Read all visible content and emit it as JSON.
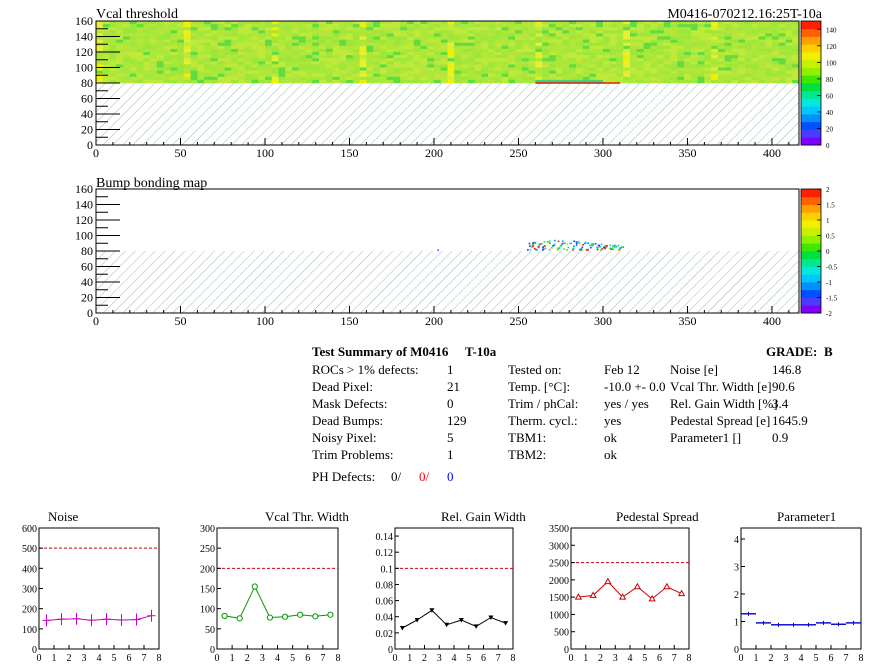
{
  "header": {
    "module_id": "M0416-070212.16:25T-10a"
  },
  "maps": [
    {
      "title": "Vcal threshold",
      "xlim": [
        0,
        416
      ],
      "ylim": [
        0,
        160
      ],
      "xticks": [
        0,
        50,
        100,
        150,
        200,
        250,
        300,
        350,
        400
      ],
      "yticks": [
        0,
        20,
        40,
        60,
        80,
        100,
        120,
        140,
        160
      ],
      "filled_rows": [
        80,
        160
      ],
      "hatched_rows": [
        0,
        80
      ],
      "dip_region": {
        "x": [
          260,
          300
        ],
        "y": [
          80,
          84
        ]
      },
      "palette": {
        "zlim": [
          0,
          150
        ],
        "ticks": [
          0,
          20,
          40,
          60,
          80,
          100,
          120,
          140
        ]
      }
    },
    {
      "title": "Bump bonding map",
      "xlim": [
        0,
        416
      ],
      "ylim": [
        0,
        160
      ],
      "xticks": [
        0,
        50,
        100,
        150,
        200,
        250,
        300,
        350,
        400
      ],
      "yticks": [
        0,
        20,
        40,
        60,
        80,
        100,
        120,
        140,
        160
      ],
      "hatched_rows": [
        0,
        80
      ],
      "hit_region": {
        "x": [
          255,
          312
        ],
        "y": [
          82,
          96
        ]
      },
      "palette": {
        "zlim": [
          -2,
          2
        ],
        "ticks": [
          -2,
          -1.5,
          -1,
          -0.5,
          0,
          0.5,
          1,
          1.5,
          2
        ]
      }
    }
  ],
  "summary": {
    "title": "Test Summary of M0416",
    "temp_tag": "T-10a",
    "grade_label": "GRADE:",
    "grade": "B",
    "col1": [
      {
        "label": "ROCs > 1% defects:",
        "value": "1"
      },
      {
        "label": "Dead Pixel:",
        "value": "21"
      },
      {
        "label": "Mask Defects:",
        "value": "0"
      },
      {
        "label": "Dead Bumps:",
        "value": "129"
      },
      {
        "label": "Noisy Pixel:",
        "value": "5"
      },
      {
        "label": "Trim Problems:",
        "value": "1"
      }
    ],
    "ph_defects": {
      "label": "PH Defects:",
      "v1": "0/",
      "v2": "0/",
      "v3": "0",
      "c1": "#000000",
      "c2": "#ff0000",
      "c3": "#0000ff"
    },
    "col2": [
      {
        "label": "Tested on:",
        "value": "Feb 12"
      },
      {
        "label": "Temp. [°C]:",
        "value": "-10.0 +- 0.0"
      },
      {
        "label": "Trim / phCal:",
        "value": "yes / yes"
      },
      {
        "label": "Therm. cycl.:",
        "value": "yes"
      },
      {
        "label": "TBM1:",
        "value": "ok"
      },
      {
        "label": "TBM2:",
        "value": "ok"
      }
    ],
    "col3": [
      {
        "label": "Noise [e]",
        "value": "146.8"
      },
      {
        "label": "Vcal Thr. Width [e]",
        "value": "90.6"
      },
      {
        "label": "Rel. Gain Width [%]",
        "value": "3.4"
      },
      {
        "label": "Pedestal Spread [e]",
        "value": "1645.9"
      },
      {
        "label": "Parameter1 []",
        "value": "0.9"
      }
    ]
  },
  "chart_data": [
    {
      "type": "line",
      "title": "Noise",
      "color": "#cc00cc",
      "marker": "plus",
      "x": [
        0.5,
        1.5,
        2.5,
        3.5,
        4.5,
        5.5,
        6.5,
        7.5
      ],
      "values": [
        142,
        148,
        150,
        143,
        148,
        144,
        146,
        165
      ],
      "xlim": [
        0,
        8
      ],
      "ylim": [
        0,
        600
      ],
      "yticks": [
        0,
        100,
        200,
        300,
        400,
        500,
        600
      ],
      "ref_line": 500
    },
    {
      "type": "line",
      "title": "Vcal Thr. Width",
      "color": "#009900",
      "marker": "circle",
      "x": [
        0.5,
        1.5,
        2.5,
        3.5,
        4.5,
        5.5,
        6.5,
        7.5
      ],
      "values": [
        82,
        76,
        155,
        78,
        80,
        85,
        81,
        85
      ],
      "xlim": [
        0,
        8
      ],
      "ylim": [
        0,
        300
      ],
      "yticks": [
        0,
        50,
        100,
        150,
        200,
        250,
        300
      ],
      "ref_line": 200
    },
    {
      "type": "line",
      "title": "Rel. Gain Width",
      "color": "#000000",
      "marker": "triangle-down",
      "x": [
        0.5,
        1.5,
        2.5,
        3.5,
        4.5,
        5.5,
        6.5,
        7.5
      ],
      "values": [
        0.026,
        0.036,
        0.048,
        0.03,
        0.036,
        0.028,
        0.039,
        0.032
      ],
      "xlim": [
        0,
        8
      ],
      "ylim": [
        0,
        0.15
      ],
      "yticks": [
        0,
        0.02,
        0.04,
        0.06,
        0.08,
        0.1,
        0.12,
        0.14
      ],
      "ref_line": 0.1
    },
    {
      "type": "line",
      "title": "Pedestal Spread",
      "color": "#cc0000",
      "marker": "triangle-up",
      "x": [
        0.5,
        1.5,
        2.5,
        3.5,
        4.5,
        5.5,
        6.5,
        7.5
      ],
      "values": [
        1500,
        1550,
        1950,
        1500,
        1800,
        1450,
        1800,
        1600
      ],
      "xlim": [
        0,
        8
      ],
      "ylim": [
        0,
        3500
      ],
      "yticks": [
        0,
        500,
        1000,
        1500,
        2000,
        2500,
        3000,
        3500
      ],
      "ref_line": 2500
    },
    {
      "type": "step",
      "title": "Parameter1",
      "color": "#0000cc",
      "marker": "hline",
      "x": [
        0.5,
        1.5,
        2.5,
        3.5,
        4.5,
        5.5,
        6.5,
        7.5
      ],
      "values": [
        1.28,
        0.95,
        0.88,
        0.88,
        0.88,
        0.95,
        0.9,
        0.95
      ],
      "xlim": [
        0,
        8
      ],
      "ylim": [
        0,
        4.4
      ],
      "yticks": [
        0,
        1,
        2,
        3,
        4
      ],
      "ref_line": null
    }
  ]
}
